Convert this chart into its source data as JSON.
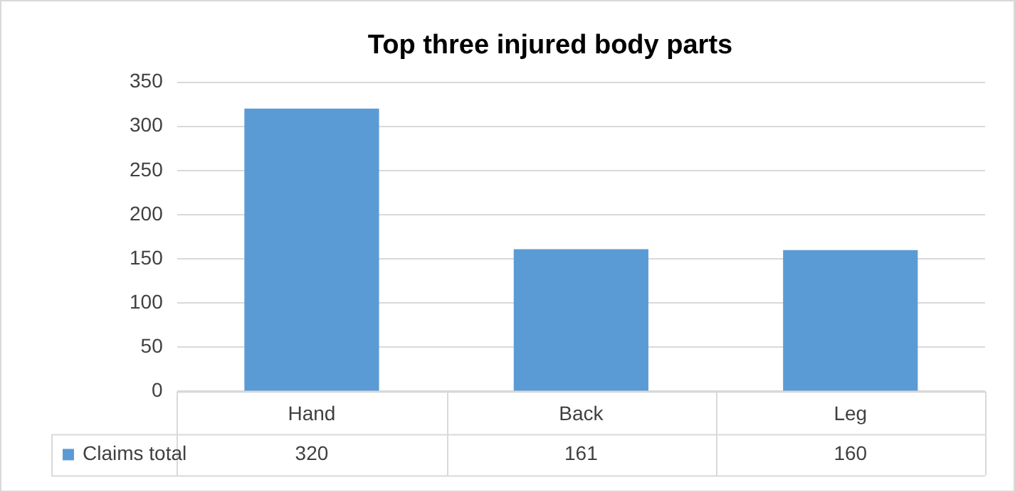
{
  "chart_data": {
    "type": "bar",
    "title": "Top three injured body parts",
    "categories": [
      "Hand",
      "Back",
      "Leg"
    ],
    "series": [
      {
        "name": "Claims total",
        "color": "#5b9bd5",
        "values": [
          320,
          161,
          160
        ]
      }
    ],
    "ylim": [
      0,
      350
    ],
    "yticks": [
      0,
      50,
      100,
      150,
      200,
      250,
      300,
      350
    ],
    "grid": true,
    "legend": "bottom",
    "data_labels": true
  }
}
